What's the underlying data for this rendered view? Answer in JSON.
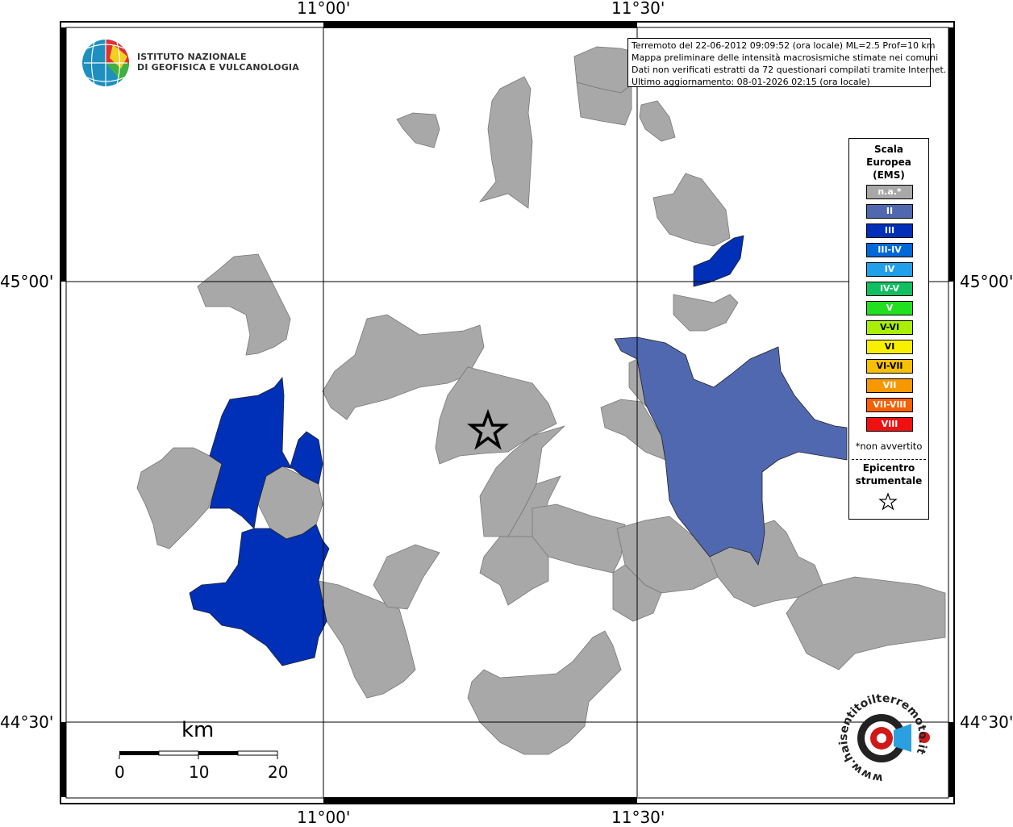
{
  "header": {
    "lon_labels_top": [
      "11°00'",
      "11°30'"
    ],
    "lon_labels_bottom": [
      "11°00'",
      "11°30'"
    ],
    "lat_labels_left": [
      "45°00'",
      "44°30'"
    ],
    "lat_labels_right": [
      "45°00'",
      "44°30'"
    ]
  },
  "logo": {
    "line1": "ISTITUTO NAZIONALE",
    "line2": "DI GEOFISICA E VULCANOLOGIA"
  },
  "info": {
    "line1": "Terremoto del 22-06-2012 09:09:52 (ora locale) ML=2.5 Prof=10 km",
    "line2": "Mappa preliminare delle intensità macrosismiche stimate nei comuni",
    "line3": "Dati non verificati estratti da 72 questionari compilati tramite Internet.",
    "line4": "Ultimo aggiornamento: 08-01-2026 02:15 (ora locale)"
  },
  "legend": {
    "title1": "Scala",
    "title2": "Europea",
    "title3": "(EMS)",
    "items": [
      {
        "label": "n.a.*",
        "color": "#a8a8a8"
      },
      {
        "label": "II",
        "color": "#5068b0"
      },
      {
        "label": "III",
        "color": "#0030b8"
      },
      {
        "label": "III-IV",
        "color": "#0068d8"
      },
      {
        "label": "IV",
        "color": "#20a0e8"
      },
      {
        "label": "IV-V",
        "color": "#10c060"
      },
      {
        "label": "V",
        "color": "#20e020"
      },
      {
        "label": "V-VI",
        "color": "#a8f000"
      },
      {
        "label": "VI",
        "color": "#f8f000"
      },
      {
        "label": "VI-VII",
        "color": "#f8c000"
      },
      {
        "label": "VII",
        "color": "#f89800"
      },
      {
        "label": "VII-VIII",
        "color": "#f86000"
      },
      {
        "label": "VIII",
        "color": "#f01010"
      }
    ],
    "note": "*non avvertito",
    "epicentre1": "Epicentro",
    "epicentre2": "strumentale"
  },
  "scale_bar": {
    "unit": "km",
    "ticks": [
      "0",
      "10",
      "20"
    ]
  },
  "colors": {
    "na": "#a8a8a8",
    "ems_ii": "#5068b0",
    "ems_iii": "#0030b8"
  },
  "watermark": {
    "text": "www.haisentitoilterremoto.it"
  }
}
